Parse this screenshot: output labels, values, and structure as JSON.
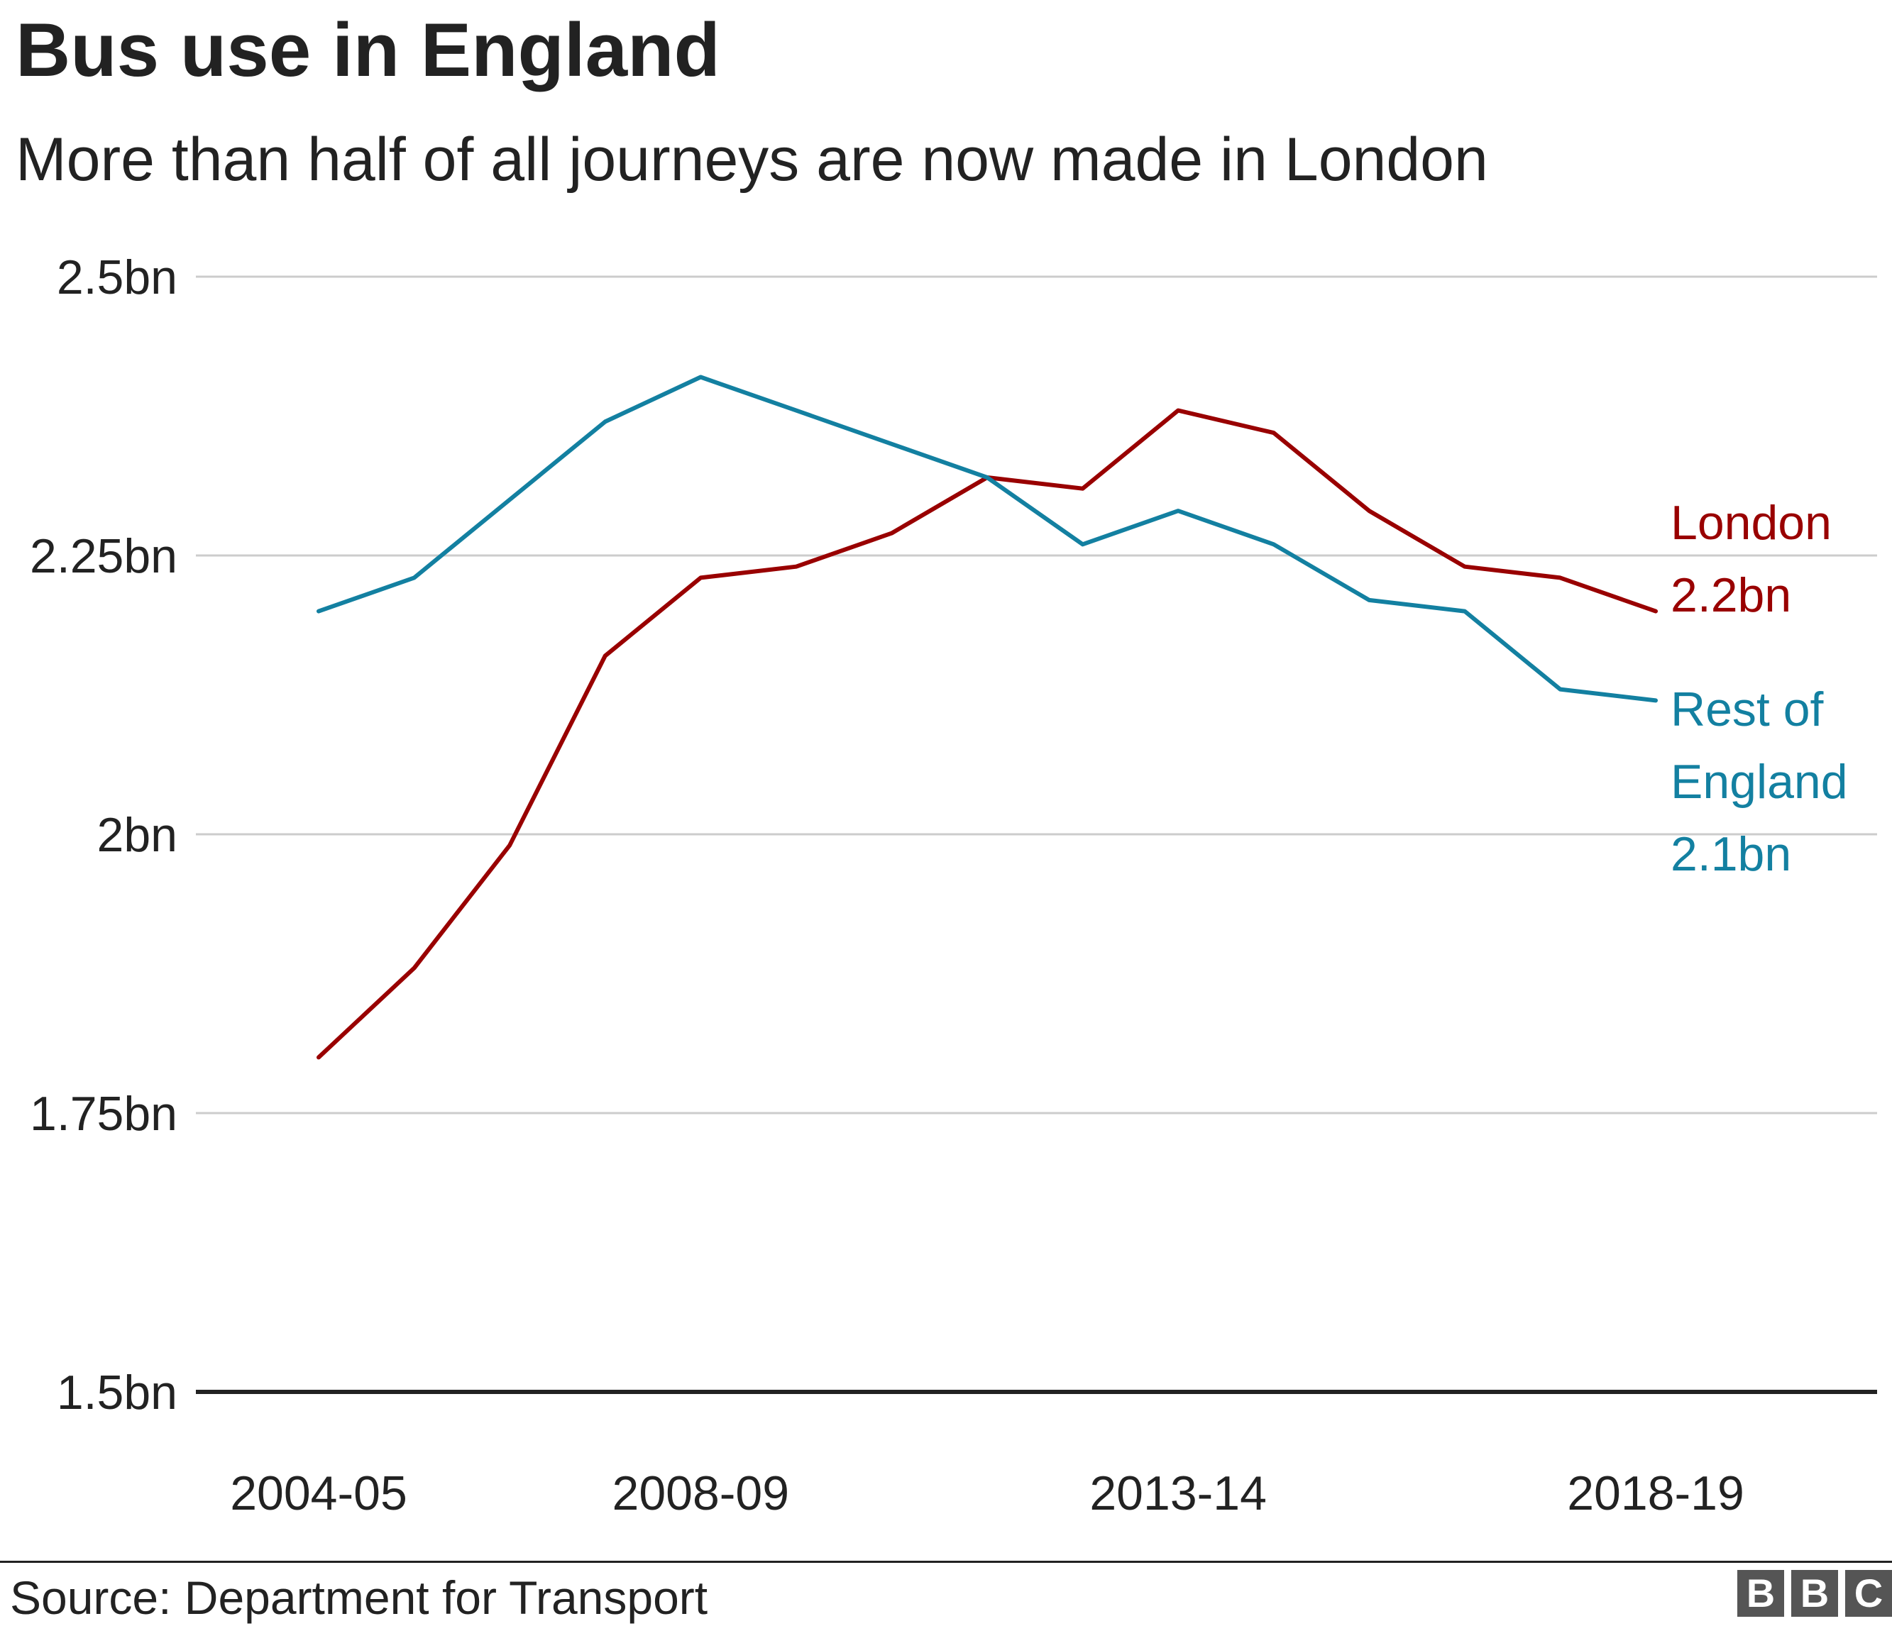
{
  "title": "Bus use in England",
  "subtitle": "More than half of all journeys are now made in London",
  "source": "Source: Department for Transport",
  "logo": {
    "letters": [
      "B",
      "B",
      "C"
    ]
  },
  "colors": {
    "london": "#990000",
    "rest": "#1380a1",
    "grid": "#cccccc",
    "axis": "#222222",
    "text": "#222222"
  },
  "chart_data": {
    "type": "line",
    "title": "Bus use in England",
    "subtitle": "More than half of all journeys are now made in London",
    "x": [
      "2004-05",
      "2005-06",
      "2006-07",
      "2007-08",
      "2008-09",
      "2009-10",
      "2010-11",
      "2011-12",
      "2012-13",
      "2013-14",
      "2014-15",
      "2015-16",
      "2016-17",
      "2017-18",
      "2018-19"
    ],
    "x_tick_labels": [
      "2004-05",
      "2008-09",
      "2013-14",
      "2018-19"
    ],
    "ylim": [
      1.5,
      2.5
    ],
    "y_ticks": [
      1.5,
      1.75,
      2.0,
      2.25,
      2.5
    ],
    "y_tick_labels": [
      "1.5bn",
      "1.75bn",
      "2bn",
      "2.25bn",
      "2.5bn"
    ],
    "grid": true,
    "series": [
      {
        "name": "London",
        "end_label": "2.2bn",
        "color": "#990000",
        "values": [
          1.8,
          1.88,
          1.99,
          2.16,
          2.23,
          2.24,
          2.27,
          2.32,
          2.31,
          2.38,
          2.36,
          2.29,
          2.24,
          2.23,
          2.2
        ]
      },
      {
        "name": "Rest of England",
        "end_label": "2.1bn",
        "color": "#1380a1",
        "values": [
          2.2,
          2.23,
          2.3,
          2.37,
          2.41,
          2.38,
          2.35,
          2.32,
          2.26,
          2.29,
          2.26,
          2.21,
          2.2,
          2.13,
          2.12
        ]
      }
    ],
    "direct_labels": [
      {
        "series": "London",
        "lines": [
          "London",
          "2.2bn"
        ]
      },
      {
        "series": "Rest of England",
        "lines": [
          "Rest of",
          "England",
          "2.1bn"
        ]
      }
    ]
  }
}
